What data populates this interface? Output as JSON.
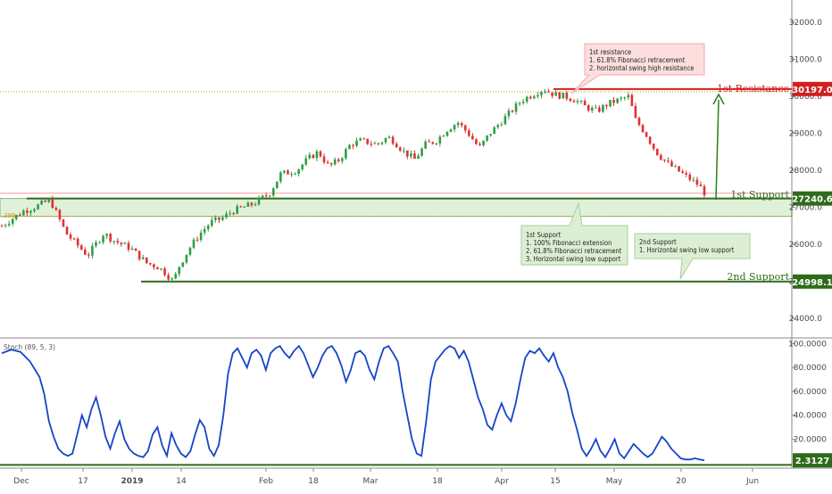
{
  "chart_data": [
    {
      "type": "candlestick",
      "title": "",
      "x_ticks": [
        "Dec",
        "17",
        "2019",
        "14",
        "Feb",
        "18",
        "Mar",
        "18",
        "Apr",
        "15",
        "May",
        "20",
        "Jun"
      ],
      "y_ticks": [
        "32000.0",
        "31000.0",
        "30000.0",
        "29000.0",
        "28000.0",
        "27000.0",
        "26000.0",
        "25000.0",
        "24000.0"
      ],
      "ylim": [
        23500,
        32600
      ],
      "close_path": [
        [
          0,
          26500
        ],
        [
          4,
          26900
        ],
        [
          6,
          27000
        ],
        [
          9,
          27200
        ],
        [
          10,
          26900
        ],
        [
          12,
          26300
        ],
        [
          16,
          25700
        ],
        [
          19,
          26300
        ],
        [
          21,
          26100
        ],
        [
          24,
          25900
        ],
        [
          27,
          25500
        ],
        [
          29,
          25400
        ],
        [
          30,
          25300
        ],
        [
          32,
          25000
        ],
        [
          33,
          25400
        ],
        [
          35,
          25900
        ],
        [
          37,
          26300
        ],
        [
          39,
          26600
        ],
        [
          41,
          26700
        ],
        [
          43,
          26900
        ],
        [
          45,
          27000
        ],
        [
          47,
          27100
        ],
        [
          49,
          27300
        ],
        [
          50,
          27400
        ],
        [
          52,
          27900
        ],
        [
          55,
          28000
        ],
        [
          57,
          28300
        ],
        [
          59,
          28500
        ],
        [
          61,
          28100
        ],
        [
          63,
          28300
        ],
        [
          65,
          28700
        ],
        [
          67,
          28800
        ],
        [
          70,
          28700
        ],
        [
          72,
          28900
        ],
        [
          73,
          28800
        ],
        [
          75,
          28500
        ],
        [
          77,
          28300
        ],
        [
          79,
          28700
        ],
        [
          81,
          28800
        ],
        [
          83,
          29100
        ],
        [
          85,
          29300
        ],
        [
          87,
          29000
        ],
        [
          89,
          28600
        ],
        [
          91,
          29000
        ],
        [
          93,
          29300
        ],
        [
          95,
          29600
        ],
        [
          97,
          29900
        ],
        [
          99,
          30050
        ],
        [
          101,
          30197
        ],
        [
          103,
          30050
        ],
        [
          105,
          30000
        ],
        [
          107,
          29900
        ],
        [
          109,
          29700
        ],
        [
          111,
          29600
        ],
        [
          113,
          29800
        ],
        [
          115,
          29900
        ],
        [
          117,
          30000
        ],
        [
          118,
          29400
        ],
        [
          120,
          29000
        ],
        [
          122,
          28500
        ],
        [
          124,
          28200
        ],
        [
          126,
          28000
        ],
        [
          128,
          27800
        ],
        [
          130,
          27600
        ],
        [
          131,
          27400
        ]
      ],
      "close_range": [
        0,
        131
      ],
      "levels": [
        {
          "name": "1st Resistance",
          "value": 30197.0,
          "label": "30197.0",
          "color": "#d0201f"
        },
        {
          "name": "1st Support",
          "value": 27240.6,
          "label": "27240.6",
          "color": "#2e6b1a"
        },
        {
          "name": "2nd Support",
          "value": 24998.1,
          "label": "24998.1",
          "color": "#2e6b1a"
        }
      ],
      "fib_marker": ".386",
      "annotations": [
        {
          "id": "resistance",
          "lines": [
            "1st resistance",
            "1. 61.8% Fibonacci retracement",
            "2. horizontal swing high resistance"
          ]
        },
        {
          "id": "support1",
          "lines": [
            "1st Support",
            "1. 100% Fibonacci extension",
            "2. 61.8% Fibonacci retracement",
            "3. Horizontal swing low support"
          ]
        },
        {
          "id": "support2",
          "lines": [
            "2nd Support",
            "1.  Horizontal swing low support"
          ]
        }
      ]
    },
    {
      "type": "line",
      "title": "Stoch (89, 5, 3)",
      "series": [
        {
          "name": "Stoch",
          "color": "#1545c8",
          "values": [
            [
              0,
              92
            ],
            [
              2,
              95
            ],
            [
              4,
              93
            ],
            [
              6,
              85
            ],
            [
              8,
              72
            ],
            [
              9,
              58
            ],
            [
              10,
              35
            ],
            [
              11,
              22
            ],
            [
              12,
              12
            ],
            [
              13,
              8
            ],
            [
              14,
              6
            ],
            [
              15,
              8
            ],
            [
              16,
              24
            ],
            [
              17,
              40
            ],
            [
              18,
              30
            ],
            [
              19,
              45
            ],
            [
              20,
              55
            ],
            [
              21,
              40
            ],
            [
              22,
              22
            ],
            [
              23,
              12
            ],
            [
              24,
              25
            ],
            [
              25,
              35
            ],
            [
              26,
              20
            ],
            [
              27,
              12
            ],
            [
              28,
              8
            ],
            [
              29,
              6
            ],
            [
              30,
              5
            ],
            [
              31,
              10
            ],
            [
              32,
              24
            ],
            [
              33,
              30
            ],
            [
              34,
              15
            ],
            [
              35,
              6
            ],
            [
              36,
              25
            ],
            [
              37,
              15
            ],
            [
              38,
              8
            ],
            [
              39,
              5
            ],
            [
              40,
              10
            ],
            [
              41,
              24
            ],
            [
              42,
              36
            ],
            [
              43,
              30
            ],
            [
              44,
              12
            ],
            [
              45,
              6
            ],
            [
              46,
              15
            ],
            [
              47,
              40
            ],
            [
              48,
              75
            ],
            [
              49,
              92
            ],
            [
              50,
              96
            ],
            [
              51,
              88
            ],
            [
              52,
              80
            ],
            [
              53,
              92
            ],
            [
              54,
              95
            ],
            [
              55,
              90
            ],
            [
              56,
              78
            ],
            [
              57,
              92
            ],
            [
              58,
              96
            ],
            [
              59,
              98
            ],
            [
              60,
              92
            ],
            [
              61,
              88
            ],
            [
              62,
              94
            ],
            [
              63,
              98
            ],
            [
              64,
              92
            ],
            [
              65,
              82
            ],
            [
              66,
              72
            ],
            [
              67,
              80
            ],
            [
              68,
              90
            ],
            [
              69,
              96
            ],
            [
              70,
              98
            ],
            [
              71,
              92
            ],
            [
              72,
              82
            ],
            [
              73,
              68
            ],
            [
              74,
              78
            ],
            [
              75,
              92
            ],
            [
              76,
              94
            ],
            [
              77,
              90
            ],
            [
              78,
              78
            ],
            [
              79,
              70
            ],
            [
              80,
              85
            ],
            [
              81,
              96
            ],
            [
              82,
              98
            ],
            [
              83,
              92
            ],
            [
              84,
              85
            ],
            [
              85,
              60
            ],
            [
              86,
              40
            ],
            [
              87,
              20
            ],
            [
              88,
              8
            ],
            [
              89,
              6
            ],
            [
              90,
              35
            ],
            [
              91,
              70
            ],
            [
              92,
              85
            ],
            [
              93,
              90
            ],
            [
              94,
              95
            ],
            [
              95,
              98
            ],
            [
              96,
              96
            ],
            [
              97,
              88
            ],
            [
              98,
              94
            ],
            [
              99,
              85
            ],
            [
              100,
              70
            ],
            [
              101,
              55
            ],
            [
              102,
              45
            ],
            [
              103,
              32
            ],
            [
              104,
              28
            ],
            [
              105,
              40
            ],
            [
              106,
              50
            ],
            [
              107,
              40
            ],
            [
              108,
              35
            ],
            [
              109,
              50
            ],
            [
              110,
              70
            ],
            [
              111,
              88
            ],
            [
              112,
              94
            ],
            [
              113,
              92
            ],
            [
              114,
              96
            ],
            [
              115,
              90
            ],
            [
              116,
              85
            ],
            [
              117,
              92
            ],
            [
              118,
              80
            ],
            [
              119,
              72
            ],
            [
              120,
              60
            ],
            [
              121,
              42
            ],
            [
              122,
              28
            ],
            [
              123,
              12
            ],
            [
              124,
              6
            ],
            [
              125,
              12
            ],
            [
              126,
              20
            ],
            [
              127,
              10
            ],
            [
              128,
              5
            ],
            [
              129,
              12
            ],
            [
              130,
              20
            ],
            [
              131,
              8
            ],
            [
              132,
              4
            ],
            [
              133,
              10
            ],
            [
              134,
              16
            ],
            [
              135,
              12
            ],
            [
              136,
              8
            ],
            [
              137,
              5
            ],
            [
              138,
              8
            ],
            [
              139,
              15
            ],
            [
              140,
              22
            ],
            [
              141,
              18
            ],
            [
              142,
              12
            ],
            [
              143,
              8
            ],
            [
              144,
              4
            ],
            [
              145,
              3
            ],
            [
              146,
              3
            ],
            [
              147,
              4
            ],
            [
              148,
              3
            ],
            [
              149,
              2.3
            ]
          ]
        }
      ],
      "ylim": [
        -2,
        104
      ],
      "y_ticks": [
        "100.0000",
        "80.0000",
        "60.0000",
        "40.0000",
        "20.0000"
      ],
      "last_value_label": "2.3127",
      "level_line": 0
    }
  ]
}
